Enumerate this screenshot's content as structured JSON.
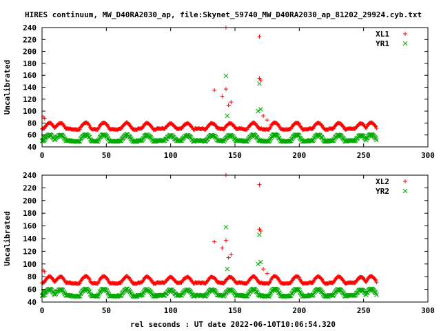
{
  "title": "HIRES continuum, MW_D40RA2030_ap, file:Skynet_59740_MW_D40RA2030_ap_81202_29924.cyb.txt",
  "xlabel": "rel seconds : UT date 2022-06-10T10:06:54.320",
  "colors": {
    "xl": "#ff0000",
    "yr": "#00aa00"
  },
  "chart_data": [
    {
      "type": "scatter",
      "ylabel": "Uncalibrated",
      "xlim": [
        0,
        300
      ],
      "ylim": [
        40,
        240
      ],
      "xticks": [
        0,
        50,
        100,
        150,
        200,
        250,
        300
      ],
      "yticks": [
        40,
        60,
        80,
        100,
        120,
        140,
        160,
        180,
        200,
        220,
        240
      ],
      "grid": false,
      "legend_position": "top-right",
      "series": [
        {
          "name": "XL1",
          "marker": "plus",
          "color": "#ff0000",
          "sample_every": 0.5,
          "x_end": 260,
          "baseline": 70,
          "peak_amplitude": 10,
          "peak_period": 16,
          "peaks_x": [
            6,
            14,
            34,
            48,
            66,
            82,
            100,
            113,
            132,
            146,
            164,
            181,
            198,
            215,
            231,
            248,
            256
          ],
          "outliers": [
            [
              1,
              90
            ],
            [
              2,
              88
            ],
            [
              134,
              135
            ],
            [
              140,
              125
            ],
            [
              143,
              240
            ],
            [
              143,
              137
            ],
            [
              145,
              110
            ],
            [
              147,
              115
            ],
            [
              169,
              225
            ],
            [
              169,
              155
            ],
            [
              170,
              152
            ],
            [
              172,
              92
            ],
            [
              175,
              85
            ]
          ]
        },
        {
          "name": "YR1",
          "marker": "cross",
          "color": "#00aa00",
          "sample_every": 0.5,
          "x_end": 260,
          "baseline": 50,
          "peak_amplitude": 10,
          "peak_period": 16,
          "peaks_x": [
            6,
            14,
            34,
            48,
            66,
            82,
            100,
            113,
            132,
            146,
            164,
            181,
            198,
            215,
            231,
            248,
            256
          ],
          "outliers": [
            [
              1,
              57
            ],
            [
              2,
              56
            ],
            [
              143,
              159
            ],
            [
              144,
              92
            ],
            [
              169,
              146
            ],
            [
              170,
              103
            ],
            [
              168,
              100
            ]
          ]
        }
      ]
    },
    {
      "type": "scatter",
      "ylabel": "Uncalibrated",
      "xlim": [
        0,
        300
      ],
      "ylim": [
        40,
        240
      ],
      "xticks": [
        0,
        50,
        100,
        150,
        200,
        250,
        300
      ],
      "yticks": [
        40,
        60,
        80,
        100,
        120,
        140,
        160,
        180,
        200,
        220,
        240
      ],
      "grid": false,
      "legend_position": "top-right",
      "series": [
        {
          "name": "XL2",
          "marker": "plus",
          "color": "#ff0000",
          "sample_every": 0.5,
          "x_end": 260,
          "baseline": 70,
          "peak_amplitude": 10,
          "peak_period": 16,
          "peaks_x": [
            6,
            14,
            34,
            48,
            66,
            82,
            100,
            113,
            132,
            146,
            164,
            181,
            198,
            215,
            231,
            248,
            256
          ],
          "outliers": [
            [
              1,
              90
            ],
            [
              2,
              88
            ],
            [
              134,
              135
            ],
            [
              140,
              125
            ],
            [
              143,
              240
            ],
            [
              143,
              137
            ],
            [
              145,
              110
            ],
            [
              147,
              115
            ],
            [
              169,
              225
            ],
            [
              169,
              155
            ],
            [
              170,
              152
            ],
            [
              172,
              92
            ],
            [
              175,
              85
            ]
          ]
        },
        {
          "name": "YR2",
          "marker": "cross",
          "color": "#00aa00",
          "sample_every": 0.5,
          "x_end": 260,
          "baseline": 50,
          "peak_amplitude": 10,
          "peak_period": 16,
          "peaks_x": [
            6,
            14,
            34,
            48,
            66,
            82,
            100,
            113,
            132,
            146,
            164,
            181,
            198,
            215,
            231,
            248,
            256
          ],
          "outliers": [
            [
              1,
              57
            ],
            [
              2,
              56
            ],
            [
              143,
              158
            ],
            [
              144,
              92
            ],
            [
              169,
              146
            ],
            [
              170,
              103
            ],
            [
              168,
              100
            ]
          ]
        }
      ]
    }
  ]
}
